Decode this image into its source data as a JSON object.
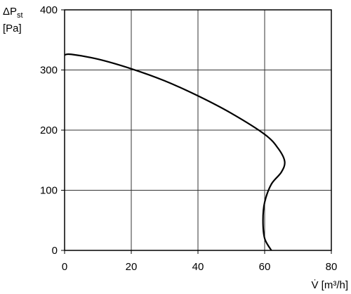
{
  "chart_data": {
    "type": "line",
    "ylabel": {
      "main": "ΔP",
      "sub": "st",
      "unit": "[Pa]"
    },
    "xlabel": "V̇ [m³/h]",
    "x": [
      0,
      2,
      10,
      20,
      30,
      40,
      50,
      60,
      64,
      66,
      65,
      62,
      60,
      59.5,
      60,
      62
    ],
    "series": [
      {
        "color": "#000000",
        "values": [
          325,
          326,
          318,
          302,
          282,
          257,
          228,
          193,
          170,
          148,
          130,
          110,
          80,
          50,
          20,
          0
        ]
      }
    ],
    "xlim": [
      0,
      80
    ],
    "xticks": [
      0,
      20,
      40,
      60,
      80
    ],
    "ylim": [
      0,
      400
    ],
    "yticks": [
      0,
      100,
      200,
      300,
      400
    ],
    "grid": true
  }
}
